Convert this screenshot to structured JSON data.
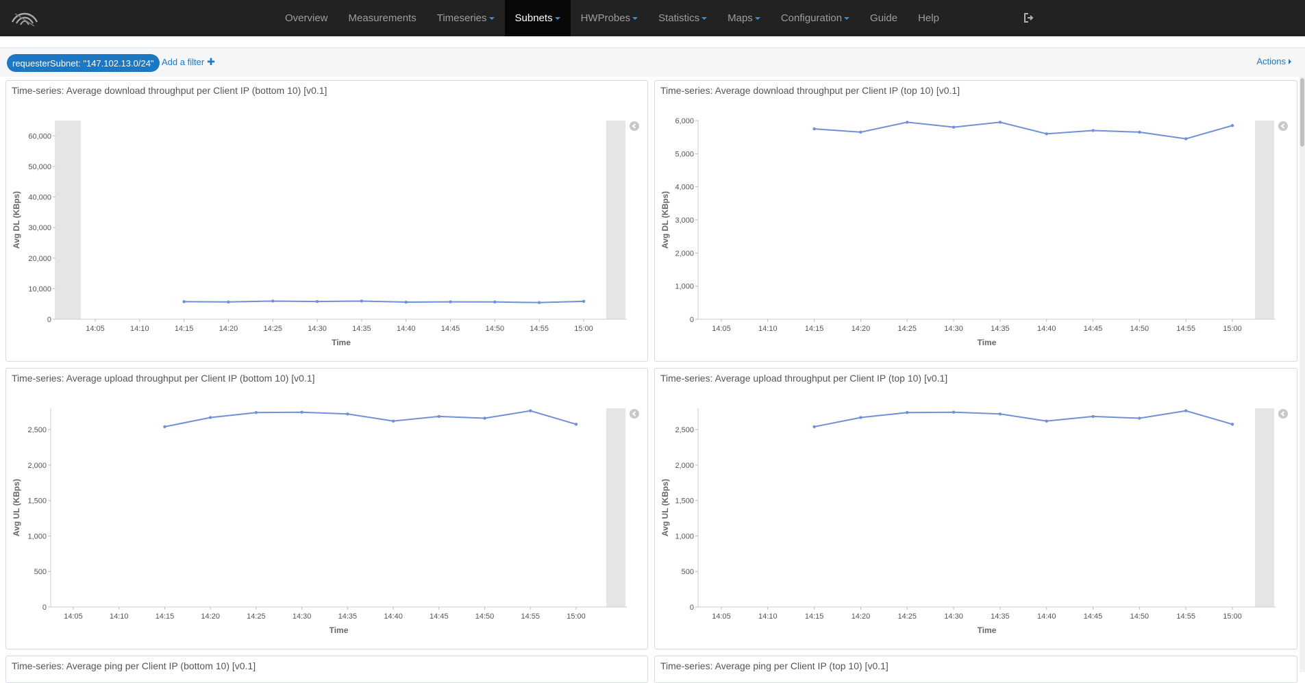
{
  "nav": {
    "items": [
      {
        "label": "Overview",
        "dropdown": false,
        "active": false
      },
      {
        "label": "Measurements",
        "dropdown": false,
        "active": false
      },
      {
        "label": "Timeseries",
        "dropdown": true,
        "active": false
      },
      {
        "label": "Subnets",
        "dropdown": true,
        "active": true
      },
      {
        "label": "HWProbes",
        "dropdown": true,
        "active": false
      },
      {
        "label": "Statistics",
        "dropdown": true,
        "active": false
      },
      {
        "label": "Maps",
        "dropdown": true,
        "active": false
      },
      {
        "label": "Configuration",
        "dropdown": true,
        "active": false
      },
      {
        "label": "Guide",
        "dropdown": false,
        "active": false
      },
      {
        "label": "Help",
        "dropdown": false,
        "active": false
      }
    ],
    "logout_icon": "logout-icon",
    "logo_icon": "wifi-logo-icon"
  },
  "filter": {
    "pill": "requesterSubnet: \"147.102.13.0/24\"",
    "add_label": "Add a filter",
    "add_icon": "plus-icon",
    "actions_label": "Actions"
  },
  "colors": {
    "line": "#6f8fd8",
    "accent": "#1d77c2",
    "navbar": "#222222"
  },
  "panels": [
    {
      "title": "Time-series: Average download throughput per Client IP (bottom 10) [v0.1]"
    },
    {
      "title": "Time-series: Average download throughput per Client IP (top 10) [v0.1]"
    },
    {
      "title": "Time-series: Average upload throughput per Client IP (bottom 10) [v0.1]"
    },
    {
      "title": "Time-series: Average upload throughput per Client IP (top 10) [v0.1]"
    },
    {
      "title": "Time-series: Average ping per Client IP (bottom 10) [v0.1]"
    },
    {
      "title": "Time-series: Average ping per Client IP (top 10) [v0.1]"
    }
  ],
  "chart_data": [
    {
      "type": "line",
      "title": "Time-series: Average download throughput per Client IP (bottom 10) [v0.1]",
      "xlabel": "Time",
      "ylabel": "Avg DL (KBps)",
      "xticks": [
        "14:05",
        "14:10",
        "14:15",
        "14:20",
        "14:25",
        "14:30",
        "14:35",
        "14:40",
        "14:45",
        "14:50",
        "14:55",
        "15:00"
      ],
      "ylim": [
        0,
        65000
      ],
      "yticks": [
        "0",
        "10,000",
        "20,000",
        "30,000",
        "40,000",
        "50,000",
        "60,000"
      ],
      "x": [
        "14:15",
        "14:20",
        "14:25",
        "14:30",
        "14:35",
        "14:40",
        "14:45",
        "14:50",
        "14:55",
        "15:00"
      ],
      "series": [
        {
          "values": [
            5750,
            5650,
            5950,
            5800,
            5950,
            5600,
            5700,
            5650,
            5450,
            5850
          ]
        }
      ],
      "shaded_edges": true
    },
    {
      "type": "line",
      "title": "Time-series: Average download throughput per Client IP (top 10) [v0.1]",
      "xlabel": "Time",
      "ylabel": "Avg DL (KBps)",
      "xticks": [
        "14:05",
        "14:10",
        "14:15",
        "14:20",
        "14:25",
        "14:30",
        "14:35",
        "14:40",
        "14:45",
        "14:50",
        "14:55",
        "15:00"
      ],
      "ylim": [
        0,
        6000
      ],
      "yticks": [
        "0",
        "1,000",
        "2,000",
        "3,000",
        "4,000",
        "5,000",
        "6,000"
      ],
      "x": [
        "14:15",
        "14:20",
        "14:25",
        "14:30",
        "14:35",
        "14:40",
        "14:45",
        "14:50",
        "14:55",
        "15:00"
      ],
      "series": [
        {
          "values": [
            5750,
            5650,
            5950,
            5800,
            5950,
            5600,
            5700,
            5650,
            5450,
            5850
          ]
        }
      ],
      "shaded_edges": true
    },
    {
      "type": "line",
      "title": "Time-series: Average upload throughput per Client IP (bottom 10) [v0.1]",
      "xlabel": "Time",
      "ylabel": "Avg UL (KBps)",
      "xticks": [
        "14:05",
        "14:10",
        "14:15",
        "14:20",
        "14:25",
        "14:30",
        "14:35",
        "14:40",
        "14:45",
        "14:50",
        "14:55",
        "15:00"
      ],
      "ylim": [
        0,
        2800
      ],
      "yticks": [
        "0",
        "500",
        "1,000",
        "1,500",
        "2,000",
        "2,500"
      ],
      "x": [
        "14:15",
        "14:20",
        "14:25",
        "14:30",
        "14:35",
        "14:40",
        "14:45",
        "14:50",
        "14:55",
        "15:00"
      ],
      "series": [
        {
          "values": [
            2540,
            2670,
            2740,
            2745,
            2720,
            2620,
            2685,
            2660,
            2765,
            2575
          ]
        }
      ],
      "shaded_edges": true
    },
    {
      "type": "line",
      "title": "Time-series: Average upload throughput per Client IP (top 10) [v0.1]",
      "xlabel": "Time",
      "ylabel": "Avg UL (KBps)",
      "xticks": [
        "14:05",
        "14:10",
        "14:15",
        "14:20",
        "14:25",
        "14:30",
        "14:35",
        "14:40",
        "14:45",
        "14:50",
        "14:55",
        "15:00"
      ],
      "ylim": [
        0,
        2800
      ],
      "yticks": [
        "0",
        "500",
        "1,000",
        "1,500",
        "2,000",
        "2,500"
      ],
      "x": [
        "14:15",
        "14:20",
        "14:25",
        "14:30",
        "14:35",
        "14:40",
        "14:45",
        "14:50",
        "14:55",
        "15:00"
      ],
      "series": [
        {
          "values": [
            2540,
            2670,
            2740,
            2745,
            2720,
            2620,
            2685,
            2660,
            2765,
            2575
          ]
        }
      ],
      "shaded_edges": true
    }
  ]
}
